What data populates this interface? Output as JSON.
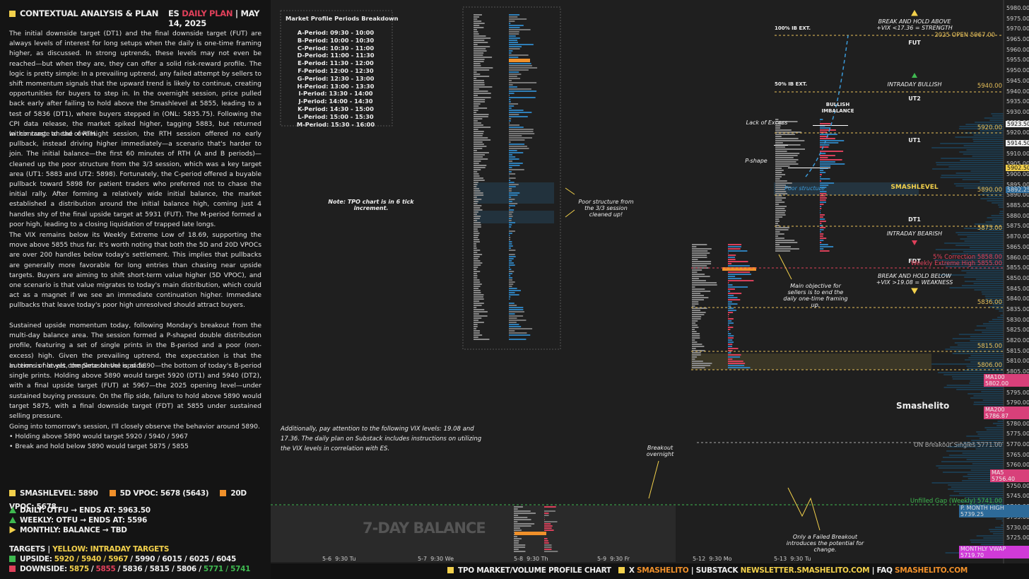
{
  "header": {
    "title": "CONTEXTUAL ANALYSIS & PLAN",
    "market": "ES",
    "plan": "DAILY PLAN",
    "date": "| MAY 14, 2025"
  },
  "paragraphs": [
    "The initial downside target (DT1) and the final downside target (FUT) are always levels of interest for long setups when the daily is one-time framing higher, as discussed. In strong uptrends, these levels may not even be reached—but when they are, they can offer a solid risk-reward profile. The logic is pretty simple: In a prevailing uptrend, any failed attempt by sellers to shift momentum signals that the upward trend is likely to continue, creating opportunities for buyers to step in. In the overnight session, price pulled back early after failing to hold above the Smashlevel at 5855, leading to a test of 5836 (DT1), where buyers stepped in (ONL: 5835.75). Following the CPI data release, the market spiked higher, tagging 5883, but returned within range ahead of RTH.",
    "In contrast to the overnight session, the RTH session offered no early pullback, instead driving higher immediately—a scenario that's harder to join. The initial balance—the first 60 minutes of RTH (A and B periods)—cleaned up the poor structure from the 3/3 session, which was a key target area (UT1: 5883 and UT2: 5898). Fortunately, the C-period offered a buyable pullback toward 5898 for patient traders who preferred not to chase the initial rally. After forming a relatively wide initial balance, the market established a distribution around the initial balance high, coming just 4 handles shy of the final upside target at 5931 (FUT). The M-period formed a poor high, leading to a closing liquidation of trapped late longs.",
    "The VIX remains below its Weekly Extreme Low of 18.69, supporting the move above 5855 thus far. It's worth noting that both the 5D and 20D VPOCs are over 200 handles below today's settlement. This implies that pullbacks are generally more favorable for long entries than chasing near upside targets. Buyers are aiming to shift short-term value higher (5D VPOC), and one scenario is that value migrates to today's main distribution, which could act as a magnet if we see an immediate continuation higher. Immediate pullbacks that leave today's poor high unresolved should attract buyers.",
    "Sustained upside momentum today, following Monday's breakout from the multi-day balance area. The session formed a P-shaped double distribution profile, featuring a set of single prints in the B-period and a poor (non-excess) high. Given the prevailing uptrend, the expectation is that the auction is not yet complete on the upside.",
    "In terms of levels, the Smashlevel is at 5890—the bottom of today's B-period single prints. Holding above 5890 would target 5920 (DT1) and 5940 (DT2), with a final upside target (FUT) at 5967—the 2025 opening level—under sustained buying pressure. On the flip side, failure to hold above 5890 would target 5875, with a final downside target (FDT) at 5855 under sustained selling pressure."
  ],
  "outlook": {
    "intro": "Going into tomorrow's session, I'll closely observe the behavior around 5890.",
    "bullets": [
      "• Holding above 5890 would target 5920 / 5940 / 5967",
      "• Break and hold below 5890 would target 5875 / 5855"
    ]
  },
  "levels": [
    {
      "text": "SMASHLEVEL: 5890",
      "color": "#f2d04b"
    },
    {
      "text": "5D VPOC: 5678 (5643)",
      "color": "#f0902a"
    },
    {
      "text": "20D VPOC: 5678",
      "color": "#f0902a"
    }
  ],
  "frames": [
    {
      "text": "DAILY: OTFU → ENDS AT: 5963.50",
      "color": "#3fb950"
    },
    {
      "text": "WEEKLY: OTFU → ENDS AT: 5596",
      "color": "#3fb950"
    },
    {
      "text": "MONTHLY: BALANCE → TBD",
      "color": "#f2d04b"
    }
  ],
  "targets": {
    "title": "TARGETS |",
    "yellow": "YELLOW: INTRADAY TARGETS",
    "upside": {
      "label": "UPSIDE:",
      "color": "#3fb950",
      "parts": [
        {
          "text": "5920 / 5940 / 5967",
          "color": "#f2d04b"
        },
        {
          "text": "/ 5990 / 6015 / 6025 / 6045",
          "color": "#eeeeee"
        }
      ]
    },
    "downside": {
      "label": "DOWNSIDE:",
      "color": "#e0405a",
      "parts": [
        {
          "text": "5875",
          "color": "#f2d04b"
        },
        {
          "text": "/",
          "color": "#eeeeee"
        },
        {
          "text": "5855",
          "color": "#e0405a"
        },
        {
          "text": "/ 5836 / 5815 / 5806 /",
          "color": "#eeeeee"
        },
        {
          "text": "5771 / 5741",
          "color": "#3fb950"
        }
      ]
    }
  },
  "periods": {
    "title": "Market Profile Periods Breakdown",
    "items": [
      "A-Period: 09:30 - 10:00",
      "B-Period: 10:00 - 10:30",
      "C-Period: 10:30 - 11:00",
      "D-Period: 11:00 - 11:30",
      "E-Period: 11:30 - 12:00",
      "F-Period: 12:00 - 12:30",
      "G-Period: 12:30 - 13:00",
      "H-Period: 13:00 - 13:30",
      "I-Period: 13:30 - 14:00",
      "J-Period: 14:00 - 14:30",
      "K-Period: 14:30 - 15:00",
      "L-Period: 15:00 - 15:30",
      "M-Period: 15:30 - 16:00"
    ]
  },
  "notes": {
    "tpo": "Note: TPO chart is in 6 tick increment.",
    "vix": "Additionally, pay attention to the following VIX levels: 19.08 and 17.36. The daily plan on Substack includes instructions on utilizing the VIX levels in correlation with ES."
  },
  "annotations": {
    "poor_cleaned": "Poor structure from the 3/3 session cleaned up!",
    "lack": "Lack of Excess",
    "pshape": "P-shape",
    "imbalance": "BULLISH IMBALANCE",
    "poor": "Poor structure",
    "ib100": "100% IB EXT.",
    "ib50": "50% IB EXT.",
    "strength": "BREAK AND HOLD ABOVE +VIX <17.36 = STRENGTH",
    "fut": "FUT",
    "bullish": "INTRADAY BULLISH",
    "ut2": "UT2",
    "ut1": "UT1",
    "smash": "SMASHLEVEL",
    "dt1": "DT1",
    "bearish": "INTRADAY BEARISH",
    "fdt": "FDT",
    "weakness": "BREAK AND HOLD BELOW +VIX >19.08 = WEAKNESS",
    "sellers": "Main objective for sellers is to end the daily one-time framing up.",
    "breakout": "Breakout overnight",
    "failed": "Only a Failed Breakout introduces the potential for change.",
    "balance": "7-DAY BALANCE",
    "brand": "Smashelito"
  },
  "level_labels": {
    "open": "2025 OPEN  5967.00",
    "l5940": "5940.00",
    "l5920": "5920.00",
    "l5890": "5890.00",
    "l5875": "5875.00",
    "corr": "5% Correction  5858.00",
    "weh": "Weekly Extreme High  5855.00",
    "l5836": "5836.00",
    "l5815": "5815.00",
    "l5806": "5806.00",
    "ons": "ON Breakout Singles  5771.00",
    "gap": "Unfilled Gap (Weekly)  5741.00"
  },
  "price_axis": [
    "5980.00",
    "5975.00",
    "5970.00",
    "5965.00",
    "5960.00",
    "5955.00",
    "5950.00",
    "5945.00",
    "5940.00",
    "5935.00",
    "5930.00",
    "5925.00",
    "5920.00",
    "5915.00",
    "5910.00",
    "5905.00",
    "5900.00",
    "5895.00",
    "5890.00",
    "5885.00",
    "5880.00",
    "5875.00",
    "5870.00",
    "5865.00",
    "5860.00",
    "5855.00",
    "5850.00",
    "5845.00",
    "5840.00",
    "5835.00",
    "5830.00",
    "5825.00",
    "5820.00",
    "5815.00",
    "5810.00",
    "5805.00",
    "5800.00",
    "5795.00",
    "5790.00",
    "5785.00",
    "5780.00",
    "5775.00",
    "5770.00",
    "5765.00",
    "5760.00",
    "5755.00",
    "5750.00",
    "5745.00",
    "5740.00",
    "5735.00",
    "5730.00",
    "5725.00",
    "5720.00"
  ],
  "price_tags": {
    "p1": "5923.50",
    "p2": "5914.50",
    "p3": "5902.50",
    "p4": "5892.25",
    "ma100": "MA100",
    "ma100v": "5802.00",
    "ma200": "MA200",
    "ma200v": "5786.87",
    "ma5": "MA5",
    "ma5v": "5756.40",
    "pmh": "P. MONTH HIGH",
    "pmhv": "5739.25",
    "vwap": "MONTHLY VWAP",
    "vwapv": "5719.70"
  },
  "time_axis": [
    "5-6  9:30 Tu",
    "5-7  9:30 We",
    "5-8  9:30 Th",
    "5-9  9:30 Fr",
    "5-12  9:30 Mo",
    "5-13  9:30 Tu"
  ],
  "footer": {
    "chart": "TPO MARKET/VOLUME PROFILE CHART",
    "x": "X",
    "x_handle": "SMASHELITO",
    "substack": "| SUBSTACK",
    "substack_url": "NEWSLETTER.SMASHELITO.COM",
    "faq": "| FAQ",
    "faq_url": "SMASHELITO.COM"
  }
}
